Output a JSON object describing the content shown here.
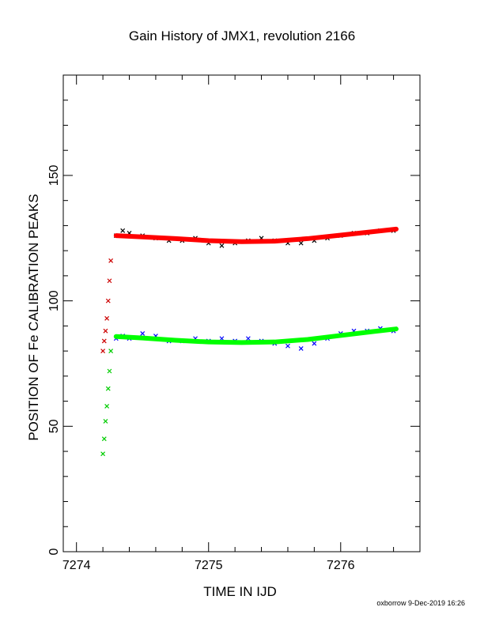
{
  "title": "Gain History of JMX1, revolution 2166",
  "footer": "oxborrow 9-Dec-2019 16:26",
  "chart_data": {
    "type": "scatter",
    "title": "Gain History of JMX1, revolution 2166",
    "xlabel": "TIME IN IJD",
    "ylabel": "POSITION OF Fe CALIBRATION PEAKS",
    "xlim": [
      7273.9,
      7276.6
    ],
    "ylim": [
      0,
      190
    ],
    "xticks": [
      7274,
      7275,
      7276
    ],
    "xtick_labels": [
      "7274",
      "7275",
      "7276"
    ],
    "yticks": [
      0,
      50,
      100,
      150
    ],
    "ytick_labels": [
      "0",
      "50",
      "100",
      "150"
    ],
    "grid": false,
    "series": [
      {
        "marker": "cross",
        "color": "#000000",
        "x": [
          7274.3,
          7274.35,
          7274.4,
          7274.5,
          7274.6,
          7274.7,
          7274.8,
          7274.9,
          7275.0,
          7275.1,
          7275.2,
          7275.3,
          7275.4,
          7275.5,
          7275.6,
          7275.7,
          7275.8,
          7275.9,
          7276.0,
          7276.1,
          7276.2,
          7276.3,
          7276.4
        ],
        "y": [
          126,
          128,
          127,
          126,
          125,
          124,
          124,
          125,
          123,
          122,
          123,
          124,
          125,
          124,
          123,
          123,
          124,
          125,
          126,
          127,
          127,
          128,
          128
        ]
      },
      {
        "marker": "cross",
        "color": "#0000ff",
        "x": [
          7274.3,
          7274.35,
          7274.4,
          7274.5,
          7274.6,
          7274.7,
          7274.8,
          7274.9,
          7275.0,
          7275.1,
          7275.2,
          7275.3,
          7275.4,
          7275.5,
          7275.6,
          7275.7,
          7275.8,
          7275.9,
          7276.0,
          7276.1,
          7276.2,
          7276.3,
          7276.4
        ],
        "y": [
          85,
          86,
          85,
          87,
          86,
          84,
          84,
          85,
          84,
          85,
          84,
          85,
          84,
          83,
          82,
          81,
          83,
          85,
          87,
          88,
          88,
          89,
          88
        ]
      },
      {
        "marker": "cross",
        "color": "#cc0000",
        "x": [
          7274.2,
          7274.21,
          7274.22,
          7274.23,
          7274.24,
          7274.25,
          7274.26
        ],
        "y": [
          80,
          84,
          88,
          93,
          100,
          108,
          116
        ]
      },
      {
        "marker": "cross",
        "color": "#00cc00",
        "x": [
          7274.2,
          7274.21,
          7274.22,
          7274.23,
          7274.24,
          7274.25,
          7274.26
        ],
        "y": [
          39,
          45,
          52,
          58,
          65,
          72,
          80
        ]
      },
      {
        "marker": "fit-curve",
        "color": "#ff0000",
        "x": [
          7274.3,
          7274.5,
          7274.75,
          7275.0,
          7275.25,
          7275.5,
          7275.75,
          7276.0,
          7276.25,
          7276.42
        ],
        "y": [
          126,
          125.5,
          124.8,
          124.0,
          123.6,
          123.8,
          124.8,
          126.2,
          127.6,
          128.6
        ]
      },
      {
        "marker": "fit-curve",
        "color": "#00ff00",
        "x": [
          7274.3,
          7274.5,
          7274.75,
          7275.0,
          7275.25,
          7275.5,
          7275.75,
          7276.0,
          7276.25,
          7276.42
        ],
        "y": [
          85.8,
          85.2,
          84.3,
          83.6,
          83.4,
          83.6,
          84.6,
          86.2,
          87.8,
          88.8
        ]
      }
    ]
  }
}
